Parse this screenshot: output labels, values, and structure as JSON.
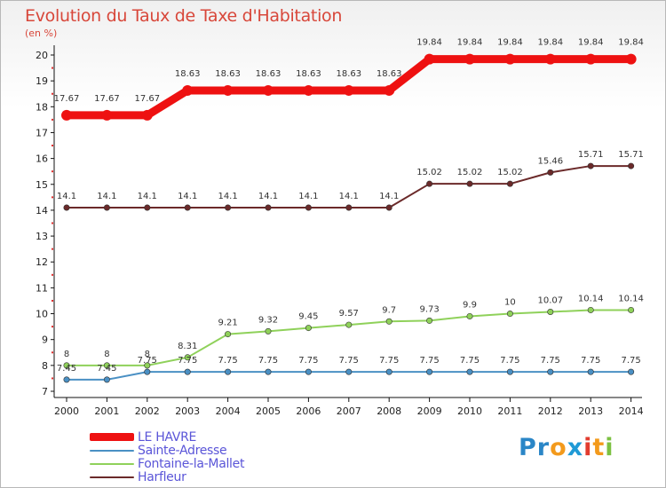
{
  "header": {
    "title": "Evolution du Taux de Taxe d'Habitation",
    "subtitle": "(en %)"
  },
  "logo": {
    "letters": [
      "P",
      "r",
      "o",
      "x",
      "i",
      "t",
      "i"
    ],
    "colors": [
      "#2a86c7",
      "#2a86c7",
      "#f39a1c",
      "#1f9ad6",
      "#e23c2f",
      "#f39a1c",
      "#7cc142"
    ]
  },
  "chart_data": {
    "type": "line",
    "title": "Evolution du Taux de Taxe d'Habitation",
    "ylabel": "(en %)",
    "xlabel": "",
    "categories": [
      "2000",
      "2001",
      "2002",
      "2003",
      "2004",
      "2005",
      "2006",
      "2007",
      "2008",
      "2009",
      "2010",
      "2011",
      "2012",
      "2013",
      "2014"
    ],
    "ylim": [
      7,
      20
    ],
    "yticks": [
      7,
      8,
      9,
      10,
      11,
      12,
      13,
      14,
      15,
      16,
      17,
      18,
      19,
      20
    ],
    "grid": false,
    "legend_position": "bottom-left",
    "series": [
      {
        "name": "LE HAVRE",
        "color": "#ee1111",
        "values": [
          17.67,
          17.67,
          17.67,
          18.63,
          18.63,
          18.63,
          18.63,
          18.63,
          18.63,
          19.84,
          19.84,
          19.84,
          19.84,
          19.84,
          19.84
        ],
        "labels": [
          "17.67",
          "17.67",
          "17.67",
          "18.63",
          "18.63",
          "18.63",
          "18.63",
          "18.63",
          "18.63",
          "19.84",
          "19.84",
          "19.84",
          "19.84",
          "19.84",
          "19.84"
        ]
      },
      {
        "name": "Sainte-Adresse",
        "color": "#4a90c4",
        "values": [
          7.45,
          7.45,
          7.75,
          7.75,
          7.75,
          7.75,
          7.75,
          7.75,
          7.75,
          7.75,
          7.75,
          7.75,
          7.75,
          7.75,
          7.75
        ],
        "labels": [
          "7.45",
          "7.45",
          "7.75",
          "7.75",
          "7.75",
          "7.75",
          "7.75",
          "7.75",
          "7.75",
          "7.75",
          "7.75",
          "7.75",
          "7.75",
          "7.75",
          "7.75"
        ]
      },
      {
        "name": "Fontaine-la-Mallet",
        "color": "#8fd15a",
        "values": [
          8,
          8,
          8,
          8.31,
          9.21,
          9.32,
          9.45,
          9.57,
          9.7,
          9.73,
          9.9,
          10,
          10.07,
          10.14,
          10.14
        ],
        "labels": [
          "8",
          "8",
          "8",
          "8.31",
          "9.21",
          "9.32",
          "9.45",
          "9.57",
          "9.7",
          "9.73",
          "9.9",
          "10",
          "10.07",
          "10.14",
          "10.14"
        ]
      },
      {
        "name": "Harfleur",
        "color": "#6b2a2a",
        "values": [
          14.1,
          14.1,
          14.1,
          14.1,
          14.1,
          14.1,
          14.1,
          14.1,
          14.1,
          15.02,
          15.02,
          15.02,
          15.46,
          15.71,
          15.71
        ],
        "labels": [
          "14.1",
          "14.1",
          "14.1",
          "14.1",
          "14.1",
          "14.1",
          "14.1",
          "14.1",
          "14.1",
          "15.02",
          "15.02",
          "15.02",
          "15.46",
          "15.71",
          "15.71"
        ]
      }
    ]
  }
}
